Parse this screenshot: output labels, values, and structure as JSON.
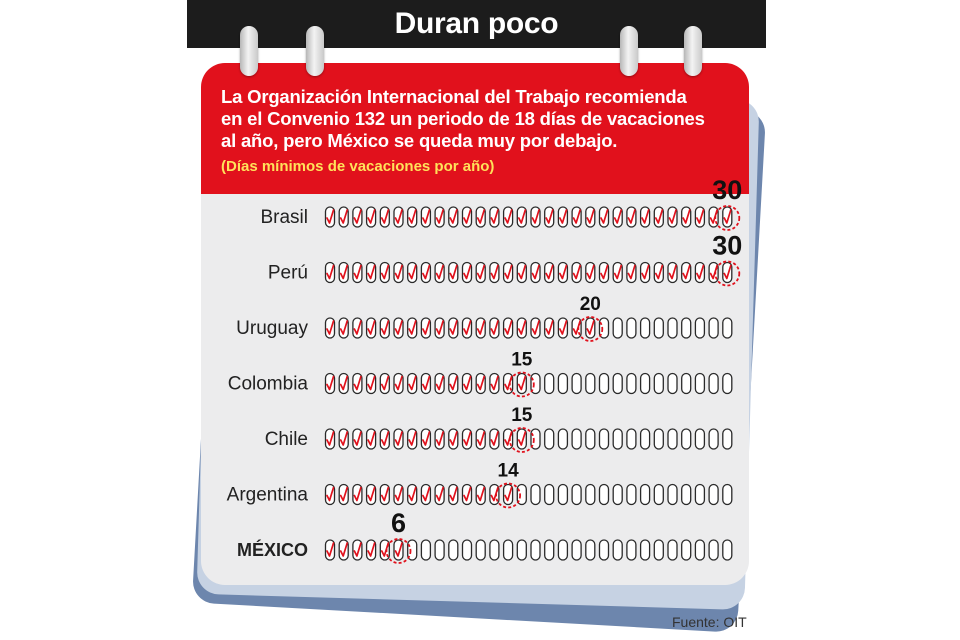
{
  "title": "Duran poco",
  "subtitle_lines": [
    "La Organización Internacional del Trabajo recomienda",
    "en el Convenio 132 un periodo de 18 días de vacaciones",
    "al año, pero México se queda muy por debajo."
  ],
  "unit_note": "(Días mínimos de vacaciones por año)",
  "source": "Fuente: OIT",
  "colors": {
    "title_bar": "#1c1c1c",
    "header_red": "#e1111c",
    "note_yellow": "#ffe25a",
    "check_red": "#e1111c",
    "calendar_page": "#ececed",
    "back_page_light": "#c6d2e3",
    "back_page_dark": "#6d86ad"
  },
  "icons": {
    "day_marker": "day-oval-icon",
    "checked": "red-check-icon",
    "highlight": "dashed-circle-icon"
  },
  "chart_data": {
    "type": "bar",
    "title": "Duran poco",
    "total_days_per_row": 30,
    "categories": [
      "Brasil",
      "Perú",
      "Uruguay",
      "Colombia",
      "Chile",
      "Argentina",
      "MÉXICO"
    ],
    "values": [
      30,
      30,
      20,
      15,
      15,
      14,
      6
    ],
    "value_labels": [
      "30",
      "30",
      "20",
      "15",
      "15",
      "14",
      "6"
    ],
    "highlight_category": "MÉXICO",
    "xlim": [
      0,
      30
    ]
  }
}
